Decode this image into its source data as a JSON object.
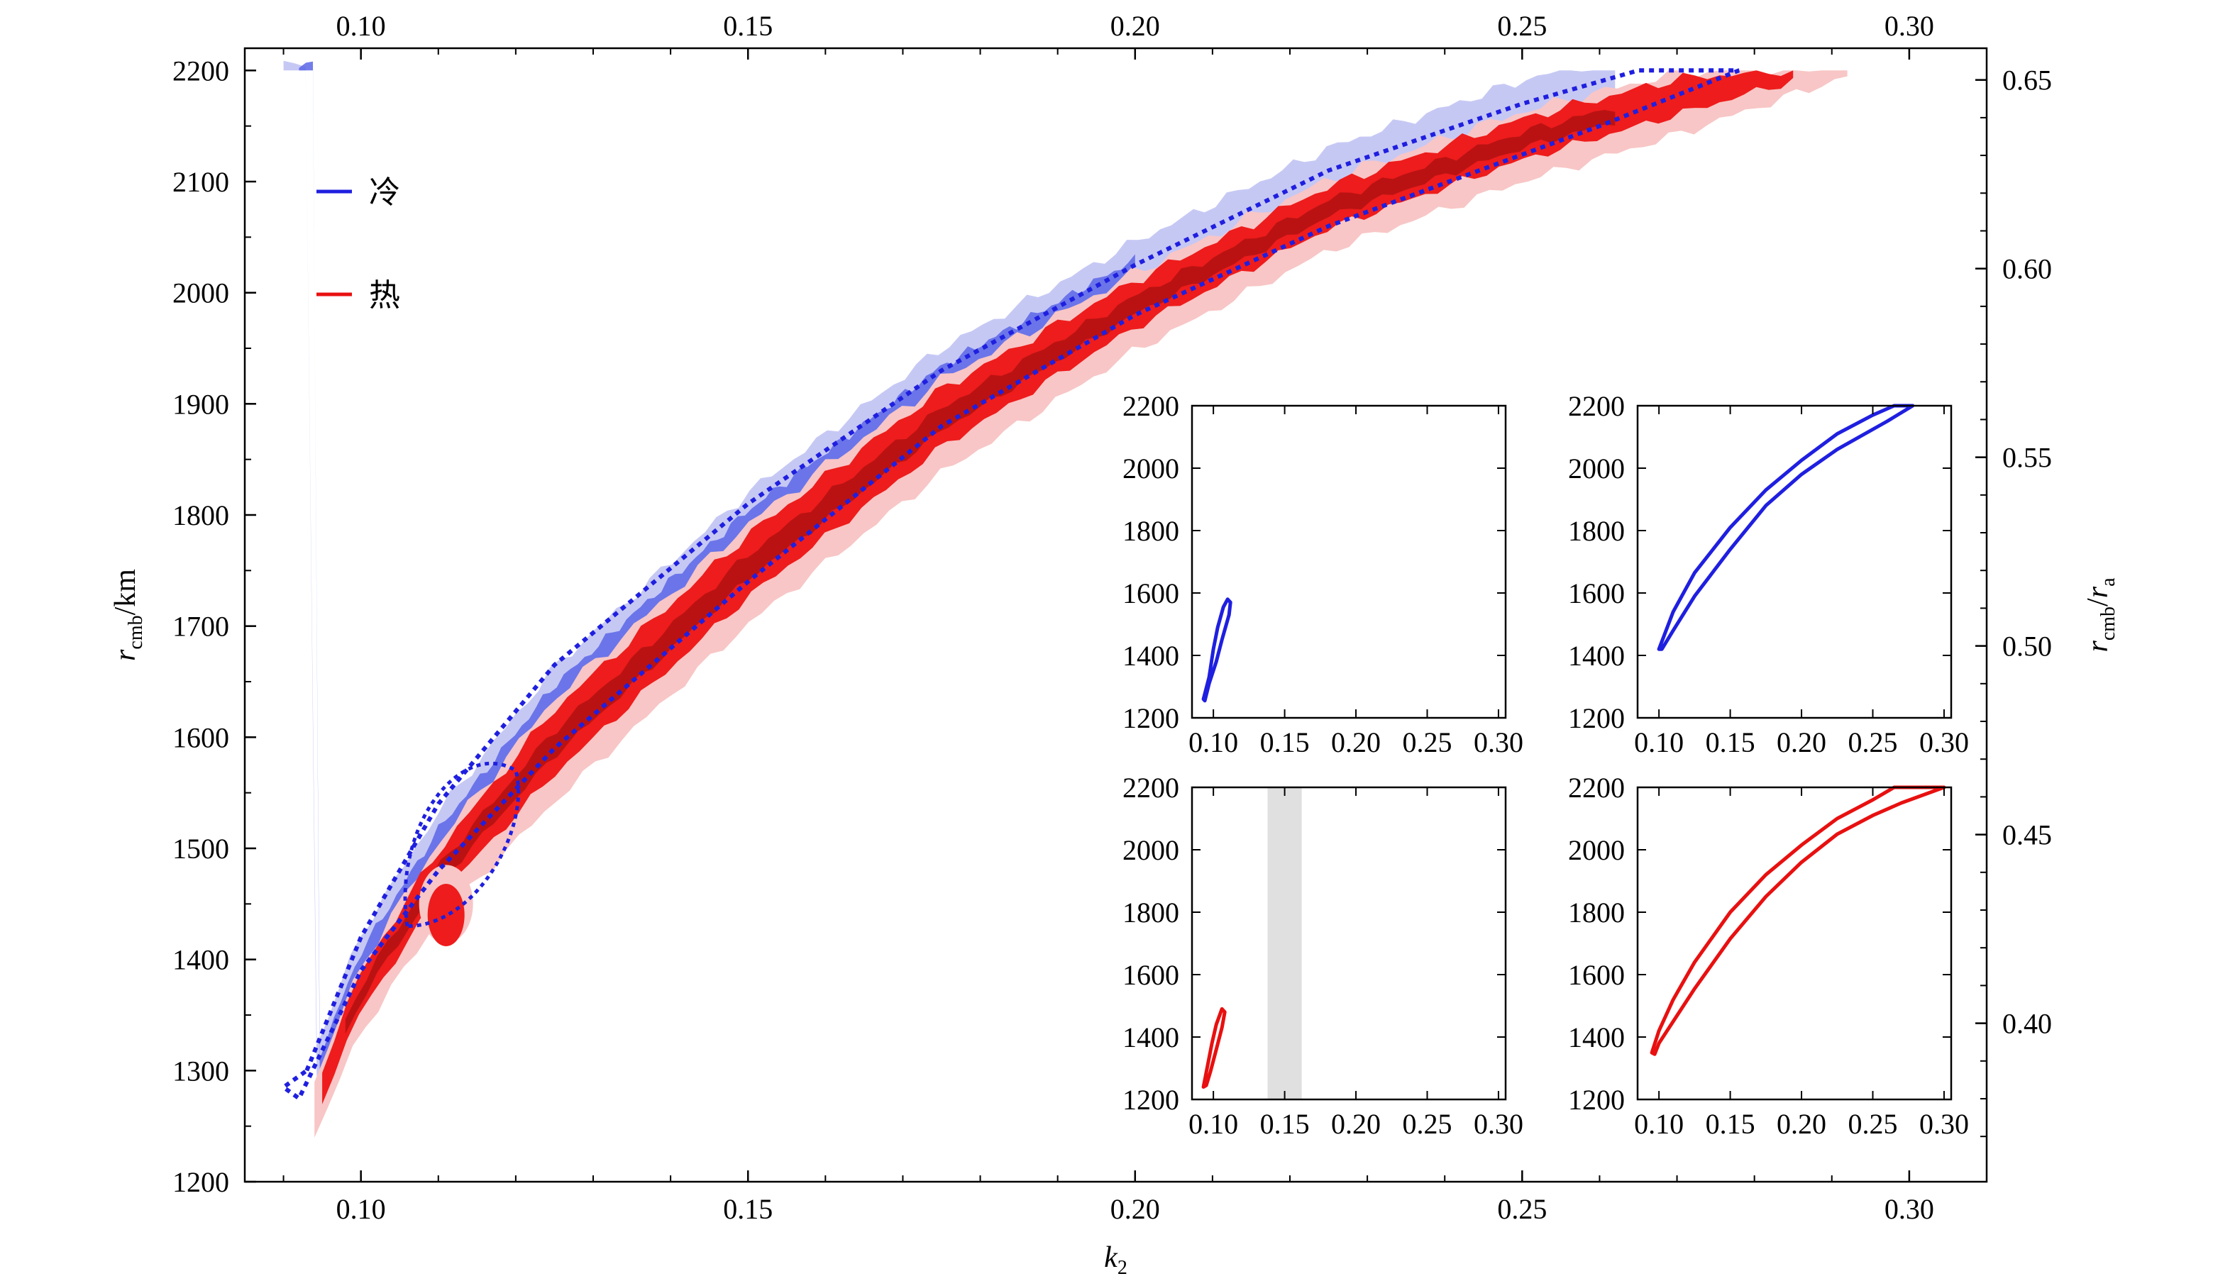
{
  "chart_data": {
    "type": "area",
    "main": {
      "xlabel": "k₂",
      "ylabel": "r_cmb/km",
      "y2label": "r_cmb/r_a",
      "xlim": [
        0.085,
        0.31
      ],
      "ylim": [
        1200,
        2220
      ],
      "y2lim": [
        0.358,
        0.6584
      ],
      "xticks": [
        0.1,
        0.15,
        0.2,
        0.25,
        0.3
      ],
      "xticklabels": [
        "0.10",
        "0.15",
        "0.20",
        "0.25",
        "0.30"
      ],
      "yticks": [
        1200,
        1300,
        1400,
        1500,
        1600,
        1700,
        1800,
        1900,
        2000,
        2100,
        2200
      ],
      "yticklabels": [
        "1200",
        "1300",
        "1400",
        "1500",
        "1600",
        "1700",
        "1800",
        "1900",
        "2000",
        "2100",
        "2200"
      ],
      "y2ticks": [
        0.4,
        0.45,
        0.5,
        0.55,
        0.6,
        0.65
      ],
      "y2ticklabels": [
        "0.40",
        "0.45",
        "0.50",
        "0.55",
        "0.60",
        "0.65"
      ],
      "legend": {
        "placement": "upper-left",
        "entries": [
          {
            "label": "冷",
            "color": "#1f1fe0"
          },
          {
            "label": "热",
            "color": "#e81010"
          }
        ]
      },
      "series": [
        {
          "name": "冷",
          "color": "#1f1fe0",
          "fill_light": "#c6c8f4",
          "fill_mid": "#5a66e6",
          "dotted_outline": [
            [
              0.093,
              1300
            ],
            [
              0.1,
              1420
            ],
            [
              0.11,
              1540
            ],
            [
              0.125,
              1665
            ],
            [
              0.15,
              1810
            ],
            [
              0.175,
              1930
            ],
            [
              0.2,
              2025
            ],
            [
              0.225,
              2110
            ],
            [
              0.25,
              2170
            ],
            [
              0.265,
              2200
            ],
            [
              0.278,
              2200
            ],
            [
              0.26,
              2150
            ],
            [
              0.225,
              2060
            ],
            [
              0.2,
              1980
            ],
            [
              0.175,
              1880
            ],
            [
              0.15,
              1740
            ],
            [
              0.125,
              1590
            ],
            [
              0.11,
              1480
            ],
            [
              0.1,
              1390
            ],
            [
              0.092,
              1275
            ],
            [
              0.09,
              1285
            ]
          ]
        },
        {
          "name": "热",
          "color": "#e81010",
          "fill_light": "#f8c6c6",
          "fill_mid": "#ee1c1c",
          "fill_dark": "#b01010",
          "outer_upper": [
            [
              0.095,
              1290
            ],
            [
              0.1,
              1390
            ],
            [
              0.11,
              1500
            ],
            [
              0.125,
              1630
            ],
            [
              0.15,
              1790
            ],
            [
              0.175,
              1920
            ],
            [
              0.2,
              2015
            ],
            [
              0.225,
              2100
            ],
            [
              0.25,
              2160
            ],
            [
              0.27,
              2200
            ],
            [
              0.292,
              2200
            ]
          ],
          "outer_lower": [
            [
              0.292,
              2200
            ],
            [
              0.27,
              2150
            ],
            [
              0.25,
              2110
            ],
            [
              0.225,
              2050
            ],
            [
              0.2,
              1960
            ],
            [
              0.175,
              1850
            ],
            [
              0.15,
              1715
            ],
            [
              0.125,
              1555
            ],
            [
              0.11,
              1450
            ],
            [
              0.1,
              1360
            ],
            [
              0.095,
              1250
            ]
          ]
        }
      ]
    },
    "insets": [
      {
        "position": "top-left",
        "series": "冷",
        "color": "#1f1fe0",
        "xlim": [
          0.085,
          0.305
        ],
        "ylim": [
          1200,
          2200
        ],
        "xticklabels": [
          "0.10",
          "0.15",
          "0.20",
          "0.25",
          "0.30"
        ],
        "yticklabels": [
          "1200",
          "1400",
          "1600",
          "1800",
          "2000",
          "2200"
        ],
        "outline": [
          [
            0.093,
            1260
          ],
          [
            0.097,
            1330
          ],
          [
            0.1,
            1420
          ],
          [
            0.103,
            1490
          ],
          [
            0.107,
            1555
          ],
          [
            0.11,
            1580
          ],
          [
            0.112,
            1570
          ],
          [
            0.111,
            1530
          ],
          [
            0.106,
            1450
          ],
          [
            0.102,
            1380
          ],
          [
            0.097,
            1310
          ],
          [
            0.094,
            1255
          ]
        ]
      },
      {
        "position": "top-right",
        "series": "冷",
        "color": "#1f1fe0",
        "xlim": [
          0.085,
          0.305
        ],
        "ylim": [
          1200,
          2200
        ],
        "xticklabels": [
          "0.10",
          "0.15",
          "0.20",
          "0.25",
          "0.30"
        ],
        "yticklabels": [
          "1200",
          "1400",
          "1600",
          "1800",
          "2000",
          "2200"
        ],
        "outline": [
          [
            0.1,
            1420
          ],
          [
            0.11,
            1540
          ],
          [
            0.125,
            1665
          ],
          [
            0.15,
            1810
          ],
          [
            0.175,
            1930
          ],
          [
            0.2,
            2025
          ],
          [
            0.225,
            2110
          ],
          [
            0.25,
            2170
          ],
          [
            0.265,
            2200
          ],
          [
            0.278,
            2200
          ],
          [
            0.26,
            2150
          ],
          [
            0.225,
            2060
          ],
          [
            0.2,
            1980
          ],
          [
            0.175,
            1880
          ],
          [
            0.15,
            1740
          ],
          [
            0.125,
            1590
          ],
          [
            0.11,
            1480
          ],
          [
            0.102,
            1420
          ]
        ]
      },
      {
        "position": "bottom-left",
        "series": "热",
        "color": "#e81010",
        "xlim": [
          0.085,
          0.305
        ],
        "ylim": [
          1200,
          2200
        ],
        "xticklabels": [
          "0.10",
          "0.15",
          "0.20",
          "0.25",
          "0.30"
        ],
        "yticklabels": [
          "1200",
          "1400",
          "1600",
          "1800",
          "2000",
          "2200"
        ],
        "shaded_xrange": [
          0.138,
          0.162
        ],
        "outline": [
          [
            0.093,
            1240
          ],
          [
            0.096,
            1310
          ],
          [
            0.099,
            1380
          ],
          [
            0.102,
            1440
          ],
          [
            0.106,
            1490
          ],
          [
            0.108,
            1480
          ],
          [
            0.106,
            1430
          ],
          [
            0.102,
            1360
          ],
          [
            0.098,
            1290
          ],
          [
            0.095,
            1245
          ]
        ]
      },
      {
        "position": "bottom-right",
        "series": "热",
        "color": "#e81010",
        "xlim": [
          0.085,
          0.305
        ],
        "ylim": [
          1200,
          2200
        ],
        "xticklabels": [
          "0.10",
          "0.15",
          "0.20",
          "0.25",
          "0.30"
        ],
        "yticklabels": [
          "1200",
          "1400",
          "1600",
          "1800",
          "2000",
          "2200"
        ],
        "outline": [
          [
            0.095,
            1350
          ],
          [
            0.1,
            1420
          ],
          [
            0.11,
            1520
          ],
          [
            0.125,
            1640
          ],
          [
            0.15,
            1800
          ],
          [
            0.175,
            1920
          ],
          [
            0.2,
            2015
          ],
          [
            0.225,
            2100
          ],
          [
            0.25,
            2160
          ],
          [
            0.265,
            2200
          ],
          [
            0.3,
            2200
          ],
          [
            0.27,
            2150
          ],
          [
            0.25,
            2110
          ],
          [
            0.225,
            2050
          ],
          [
            0.2,
            1960
          ],
          [
            0.175,
            1850
          ],
          [
            0.15,
            1715
          ],
          [
            0.125,
            1555
          ],
          [
            0.11,
            1450
          ],
          [
            0.1,
            1380
          ],
          [
            0.097,
            1345
          ]
        ]
      }
    ]
  }
}
